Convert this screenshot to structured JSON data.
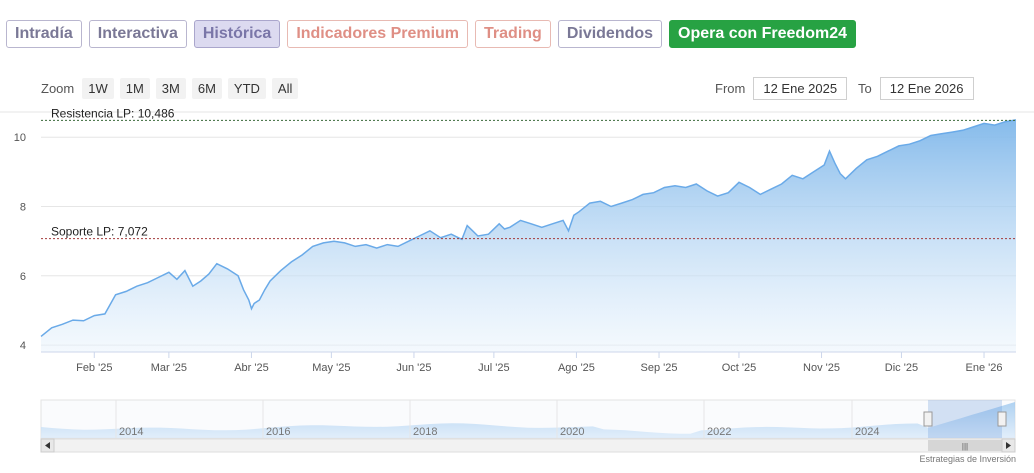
{
  "tabs": [
    {
      "label": "Intradía"
    },
    {
      "label": "Interactiva"
    },
    {
      "label": "Histórica"
    },
    {
      "label": "Indicadores Premium"
    },
    {
      "label": "Trading"
    },
    {
      "label": "Dividendos"
    },
    {
      "label": "Opera con Freedom24"
    }
  ],
  "zoom": {
    "label": "Zoom",
    "buttons": [
      "1W",
      "1M",
      "3M",
      "6M",
      "YTD",
      "All"
    ]
  },
  "range": {
    "from_label": "From",
    "from_value": "12 Ene 2025",
    "to_label": "To",
    "to_value": "12 Ene 2026"
  },
  "credit": "Estrategias de Inversión",
  "colors": {
    "tab_active_bg": "#dcdaf0",
    "accent_green": "#27a243",
    "series_line": "#6aaae8",
    "series_fill": "#bcd9f4",
    "support_line": "#a33a3a",
    "resistance_line": "#3a6a3a"
  },
  "chart_data": {
    "type": "area",
    "title": "",
    "xlabel": "",
    "ylabel": "",
    "ylim": [
      3.8,
      10.7
    ],
    "y_ticks": [
      "4",
      "6",
      "8",
      "10"
    ],
    "x_ticks": [
      "Feb '25",
      "Mar '25",
      "Abr '25",
      "May '25",
      "Jun '25",
      "Jul '25",
      "Ago '25",
      "Sep '25",
      "Oct '25",
      "Nov '25",
      "Dic '25",
      "Ene '26"
    ],
    "x_tick_days": [
      20,
      48,
      79,
      109,
      140,
      170,
      201,
      232,
      262,
      293,
      323,
      354
    ],
    "x_range_days": [
      0,
      366
    ],
    "grid": true,
    "legend": "none",
    "series": [
      {
        "x_days": [
          0,
          4,
          8,
          12,
          16,
          20,
          24,
          28,
          32,
          36,
          40,
          44,
          48,
          51,
          54,
          57,
          60,
          63,
          66,
          70,
          74,
          76,
          78,
          79,
          80,
          82,
          84,
          86,
          88,
          90,
          94,
          98,
          102,
          106,
          110,
          114,
          118,
          122,
          126,
          130,
          134,
          138,
          142,
          146,
          150,
          154,
          158,
          160,
          162,
          164,
          168,
          172,
          174,
          176,
          180,
          184,
          188,
          192,
          196,
          198,
          200,
          202,
          206,
          210,
          214,
          218,
          222,
          226,
          230,
          234,
          238,
          242,
          246,
          250,
          254,
          258,
          262,
          266,
          270,
          274,
          278,
          282,
          286,
          290,
          294,
          296,
          298,
          300,
          302,
          306,
          310,
          314,
          318,
          322,
          326,
          330,
          334,
          338,
          342,
          346,
          350,
          354,
          358,
          362,
          366
        ],
        "values": [
          4.25,
          4.5,
          4.6,
          4.72,
          4.7,
          4.85,
          4.9,
          5.45,
          5.55,
          5.7,
          5.8,
          5.95,
          6.1,
          5.9,
          6.15,
          5.7,
          5.85,
          6.05,
          6.35,
          6.2,
          6.0,
          5.6,
          5.3,
          5.05,
          5.2,
          5.3,
          5.6,
          5.85,
          6.0,
          6.15,
          6.4,
          6.6,
          6.85,
          6.95,
          7.0,
          6.95,
          6.85,
          6.9,
          6.8,
          6.9,
          6.85,
          7.0,
          7.15,
          7.3,
          7.1,
          7.2,
          7.05,
          7.45,
          7.3,
          7.15,
          7.2,
          7.5,
          7.35,
          7.4,
          7.6,
          7.5,
          7.4,
          7.5,
          7.6,
          7.3,
          7.75,
          7.85,
          8.1,
          8.15,
          8.0,
          8.1,
          8.2,
          8.35,
          8.4,
          8.55,
          8.6,
          8.55,
          8.65,
          8.45,
          8.3,
          8.4,
          8.7,
          8.55,
          8.35,
          8.5,
          8.65,
          8.9,
          8.8,
          9.0,
          9.2,
          9.6,
          9.25,
          8.95,
          8.8,
          9.1,
          9.35,
          9.45,
          9.6,
          9.75,
          9.8,
          9.9,
          10.05,
          10.1,
          10.15,
          10.2,
          10.3,
          10.4,
          10.35,
          10.45,
          10.5
        ]
      }
    ],
    "annotations": [
      {
        "label": "Resistencia LP: 10,486",
        "y": 10.486
      },
      {
        "label": "Soporte LP: 7,072",
        "y": 7.072
      }
    ],
    "navigator": {
      "x_ticks": [
        "2014",
        "2016",
        "2018",
        "2020",
        "2022",
        "2024"
      ]
    }
  }
}
